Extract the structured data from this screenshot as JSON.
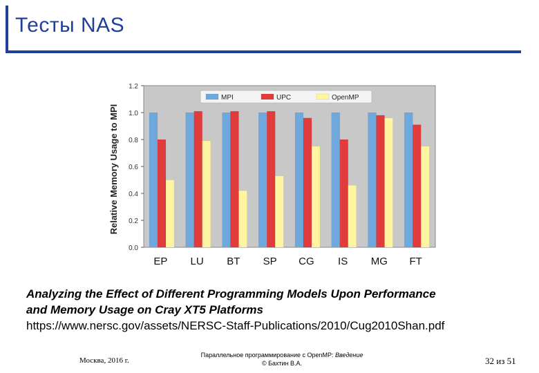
{
  "slide": {
    "title": "Тесты NAS",
    "caption_line1": "Analyzing the Effect of Different Programming Models Upon Performance",
    "caption_line2": "and Memory Usage on Cray XT5 Platforms",
    "caption_url": "https://www.nersc.gov/assets/NERSC-Staff-Publications/2010/Cug2010Shan.pdf",
    "footer_left": "Москва, 2016 г.",
    "footer_center_prefix": "Параллельное программирование с OpenMP: ",
    "footer_center_emph": "Введение",
    "footer_center_line2": "© Бахтин В.А.",
    "footer_right": "32 из 51"
  },
  "chart_data": {
    "type": "bar",
    "title": "",
    "xlabel": "",
    "ylabel": "Relative Memory Usage to MPI",
    "ylim": [
      0,
      1.2
    ],
    "yticks": [
      "0.0",
      "0.2",
      "0.4",
      "0.6",
      "0.8",
      "1.0",
      "1.2"
    ],
    "grid": false,
    "legend_position": "top-center",
    "categories": [
      "EP",
      "LU",
      "BT",
      "SP",
      "CG",
      "IS",
      "MG",
      "FT"
    ],
    "series": [
      {
        "name": "MPI",
        "color": "#6fa8dc",
        "values": [
          1.0,
          1.0,
          1.0,
          1.0,
          1.0,
          1.0,
          1.0,
          1.0
        ]
      },
      {
        "name": "UPC",
        "color": "#e03c3c",
        "values": [
          0.8,
          1.01,
          1.01,
          1.01,
          0.96,
          0.8,
          0.98,
          0.91
        ]
      },
      {
        "name": "OpenMP",
        "color": "#fff5a0",
        "values": [
          0.5,
          0.79,
          0.42,
          0.53,
          0.75,
          0.46,
          0.96,
          0.75
        ]
      }
    ]
  }
}
